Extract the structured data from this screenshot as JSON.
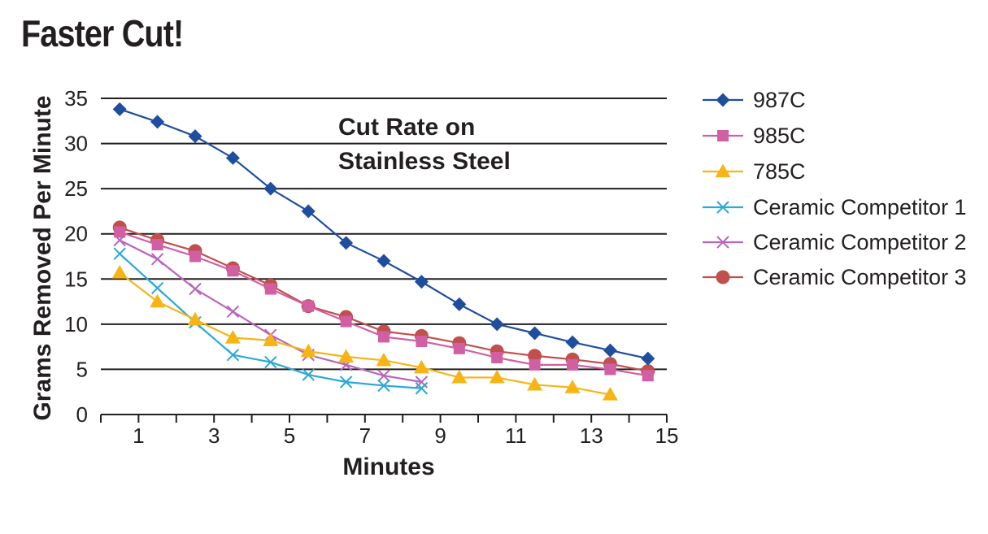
{
  "page": {
    "title": "Faster Cut!"
  },
  "chart_data": {
    "type": "line",
    "title": "Cut Rate on Stainless Steel",
    "title_lines": [
      "Cut Rate on",
      "Stainless Steel"
    ],
    "xlabel": "Minutes",
    "ylabel": "Grams Removed Per Minute",
    "xlim": [
      0,
      15
    ],
    "ylim": [
      0,
      35
    ],
    "xticks": [
      1,
      3,
      5,
      7,
      9,
      11,
      13,
      15
    ],
    "yticks": [
      0,
      5,
      10,
      15,
      20,
      25,
      30,
      35
    ],
    "grid": true,
    "legend_position": "right",
    "series": [
      {
        "name": "987C",
        "color": "#1f4e9e",
        "marker": "diamond",
        "x": [
          0.5,
          1.5,
          2.5,
          3.5,
          4.5,
          5.5,
          6.5,
          7.5,
          8.5,
          9.5,
          10.5,
          11.5,
          12.5,
          13.5,
          14.5
        ],
        "values": [
          33.8,
          32.4,
          30.8,
          28.4,
          25.0,
          22.5,
          19.0,
          17.0,
          14.7,
          12.2,
          10.0,
          9.0,
          8.0,
          7.1,
          6.2
        ]
      },
      {
        "name": "985C",
        "color": "#d15fa3",
        "marker": "square",
        "x": [
          0.5,
          1.5,
          2.5,
          3.5,
          4.5,
          5.5,
          6.5,
          7.5,
          8.5,
          9.5,
          10.5,
          11.5,
          12.5,
          13.5,
          14.5
        ],
        "values": [
          20.2,
          18.8,
          17.5,
          15.9,
          13.9,
          12.0,
          10.3,
          8.6,
          8.1,
          7.3,
          6.3,
          5.5,
          5.5,
          5.0,
          4.3
        ]
      },
      {
        "name": "785C",
        "color": "#f6b515",
        "marker": "triangle",
        "x": [
          0.5,
          1.5,
          2.5,
          3.5,
          4.5,
          5.5,
          6.5,
          7.5,
          8.5,
          9.5,
          10.5,
          11.5,
          12.5,
          13.5
        ],
        "values": [
          15.7,
          12.5,
          10.5,
          8.5,
          8.2,
          7.0,
          6.4,
          6.0,
          5.2,
          4.1,
          4.1,
          3.3,
          3.0,
          2.2
        ]
      },
      {
        "name": "Ceramic Competitor 1",
        "color": "#29a9d6",
        "marker": "x",
        "x": [
          0.5,
          1.5,
          2.5,
          3.5,
          4.5,
          5.5,
          6.5,
          7.5,
          8.5
        ],
        "values": [
          17.8,
          14.0,
          10.2,
          6.6,
          5.8,
          4.4,
          3.6,
          3.2,
          2.9
        ]
      },
      {
        "name": "Ceramic Competitor 2",
        "color": "#b865bd",
        "marker": "x",
        "x": [
          0.5,
          1.5,
          2.5,
          3.5,
          4.5,
          5.5,
          6.5,
          7.5,
          8.5
        ],
        "values": [
          19.3,
          17.2,
          13.9,
          11.4,
          8.8,
          6.6,
          5.5,
          4.3,
          3.6
        ]
      },
      {
        "name": "Ceramic Competitor 3",
        "color": "#c0504d",
        "marker": "circle",
        "x": [
          0.5,
          1.5,
          2.5,
          3.5,
          4.5,
          5.5,
          6.5,
          7.5,
          8.5,
          9.5,
          10.5,
          11.5,
          12.5,
          13.5,
          14.5
        ],
        "values": [
          20.7,
          19.3,
          18.1,
          16.2,
          14.3,
          12.0,
          10.8,
          9.2,
          8.7,
          7.9,
          7.0,
          6.5,
          6.1,
          5.6,
          4.8
        ]
      }
    ]
  }
}
